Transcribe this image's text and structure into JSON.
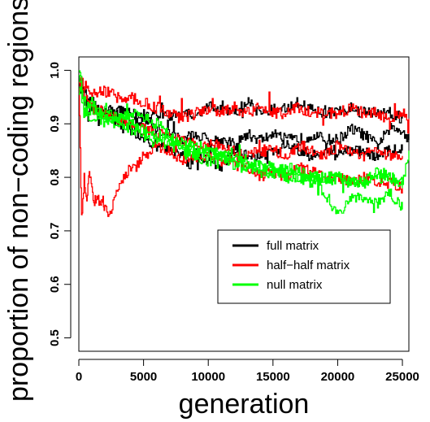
{
  "chart_data": {
    "type": "line",
    "title": "",
    "xlabel": "generation",
    "ylabel": "proportion of non−coding regions",
    "xlim": [
      0,
      25500
    ],
    "ylim": [
      0.475,
      1.025
    ],
    "xticks": [
      0,
      5000,
      10000,
      15000,
      20000,
      25000
    ],
    "xtick_labels": [
      "0",
      "5000",
      "10000",
      "15000",
      "20000",
      "25000"
    ],
    "yticks": [
      0.5,
      0.6,
      0.7,
      0.8,
      0.9,
      1.0
    ],
    "ytick_labels": [
      "0.5",
      "0.6",
      "0.7",
      "0.8",
      "0.9",
      "1.0"
    ],
    "grid": false,
    "legend_position": "center-right",
    "series": [
      {
        "name": "full matrix",
        "color": "#000000",
        "x": [
          0,
          400,
          700,
          1000,
          1500,
          2000,
          3000,
          4000,
          5000,
          6000,
          7000,
          8000,
          9000,
          10000,
          11000,
          12000,
          13000,
          14000,
          15000,
          16000,
          17000,
          18000,
          19000,
          20000,
          21000,
          22000,
          23000,
          24000,
          25000,
          25500
        ],
        "values": [
          0.98,
          0.95,
          0.91,
          0.93,
          0.9,
          0.92,
          0.91,
          0.9,
          0.91,
          0.89,
          0.88,
          0.87,
          0.88,
          0.87,
          0.87,
          0.86,
          0.88,
          0.87,
          0.88,
          0.87,
          0.87,
          0.88,
          0.87,
          0.87,
          0.89,
          0.88,
          0.86,
          0.89,
          0.89,
          0.87
        ]
      },
      {
        "name": "full matrix",
        "color": "#000000",
        "x": [
          0,
          500,
          1000,
          2000,
          3000,
          4000,
          5000,
          6000,
          7000,
          8000,
          8500,
          9000,
          10000,
          11000,
          12000,
          13000,
          14000,
          15000,
          16000,
          17000,
          18000,
          19000,
          20000,
          21000,
          22000,
          23000,
          24000,
          25000
        ],
        "values": [
          0.98,
          0.96,
          0.93,
          0.92,
          0.9,
          0.89,
          0.87,
          0.86,
          0.85,
          0.84,
          0.82,
          0.85,
          0.83,
          0.82,
          0.85,
          0.84,
          0.84,
          0.85,
          0.86,
          0.85,
          0.84,
          0.85,
          0.84,
          0.85,
          0.85,
          0.84,
          0.85,
          0.85
        ]
      },
      {
        "name": "full matrix",
        "color": "#000000",
        "x": [
          0,
          500,
          1000,
          2000,
          3000,
          4000,
          5000,
          6000,
          7000,
          8000,
          9000,
          10000,
          11000,
          12000,
          13000,
          14000,
          15000,
          16000,
          17000,
          18000,
          19000,
          20000,
          21000,
          22000,
          23000,
          24000,
          25000
        ],
        "values": [
          0.97,
          0.95,
          0.93,
          0.92,
          0.93,
          0.92,
          0.91,
          0.92,
          0.91,
          0.92,
          0.92,
          0.93,
          0.93,
          0.92,
          0.94,
          0.92,
          0.93,
          0.93,
          0.94,
          0.93,
          0.92,
          0.92,
          0.93,
          0.92,
          0.92,
          0.92,
          0.91
        ]
      },
      {
        "name": "half−half matrix",
        "color": "#ff0000",
        "x": [
          0,
          200,
          400,
          600,
          800,
          1000,
          1200,
          1400,
          1600,
          1800,
          2000,
          2400,
          2800,
          3200,
          3600,
          4000,
          4500,
          5000,
          6000,
          7000,
          8000,
          9000,
          10000,
          11000,
          12000,
          13000,
          14000,
          15000,
          16000,
          17000,
          18000,
          19000,
          20000,
          21000,
          22000,
          23000,
          24000,
          25000
        ],
        "values": [
          0.97,
          0.72,
          0.8,
          0.76,
          0.82,
          0.78,
          0.75,
          0.77,
          0.75,
          0.76,
          0.74,
          0.73,
          0.76,
          0.79,
          0.8,
          0.82,
          0.82,
          0.84,
          0.86,
          0.85,
          0.83,
          0.84,
          0.84,
          0.83,
          0.83,
          0.82,
          0.8,
          0.81,
          0.8,
          0.82,
          0.81,
          0.8,
          0.8,
          0.79,
          0.8,
          0.79,
          0.79,
          0.78
        ]
      },
      {
        "name": "half−half matrix",
        "color": "#ff0000",
        "x": [
          0,
          500,
          1000,
          2000,
          3000,
          4000,
          5000,
          6000,
          7000,
          8000,
          9000,
          10000,
          11000,
          12000,
          13000,
          14000,
          15000,
          16000,
          17000,
          18000,
          19000,
          20000,
          21000,
          22000,
          23000,
          24000,
          25000,
          25500
        ],
        "values": [
          0.98,
          0.97,
          0.96,
          0.96,
          0.95,
          0.95,
          0.94,
          0.93,
          0.92,
          0.91,
          0.92,
          0.93,
          0.92,
          0.93,
          0.92,
          0.93,
          0.92,
          0.92,
          0.93,
          0.92,
          0.92,
          0.92,
          0.93,
          0.92,
          0.92,
          0.91,
          0.92,
          0.91
        ]
      },
      {
        "name": "half−half matrix",
        "color": "#ff0000",
        "x": [
          0,
          500,
          1000,
          2000,
          3000,
          4000,
          5000,
          6000,
          7000,
          8000,
          9000,
          10000,
          11000,
          12000,
          13000,
          14000,
          15000,
          16000,
          17000,
          18000,
          19000,
          20000,
          21000,
          22000,
          23000,
          24000,
          25000
        ],
        "values": [
          0.98,
          0.95,
          0.93,
          0.92,
          0.91,
          0.9,
          0.89,
          0.88,
          0.88,
          0.87,
          0.86,
          0.86,
          0.86,
          0.85,
          0.84,
          0.85,
          0.85,
          0.84,
          0.86,
          0.85,
          0.84,
          0.86,
          0.85,
          0.84,
          0.85,
          0.84,
          0.84
        ]
      },
      {
        "name": "null matrix",
        "color": "#00ff00",
        "x": [
          0,
          300,
          600,
          1000,
          1500,
          2000,
          3000,
          4000,
          5000,
          6000,
          7000,
          8000,
          9000,
          10000,
          11000,
          12000,
          13000,
          14000,
          15000,
          16000,
          17000,
          18000,
          19000,
          20000,
          21000,
          22000,
          23000,
          24000,
          25000,
          25500
        ],
        "values": [
          1.0,
          0.96,
          0.93,
          0.94,
          0.92,
          0.93,
          0.91,
          0.92,
          0.91,
          0.9,
          0.88,
          0.86,
          0.85,
          0.85,
          0.84,
          0.83,
          0.82,
          0.82,
          0.81,
          0.8,
          0.8,
          0.8,
          0.79,
          0.8,
          0.79,
          0.79,
          0.8,
          0.8,
          0.79,
          0.85
        ]
      },
      {
        "name": "null matrix",
        "color": "#00ff00",
        "x": [
          0,
          300,
          600,
          1000,
          1500,
          2000,
          3000,
          4000,
          5000,
          6000,
          7000,
          8000,
          9000,
          10000,
          11000,
          12000,
          13000,
          14000,
          15000,
          16000,
          17000,
          18000,
          19000,
          20000,
          21000,
          22000,
          23000,
          24000,
          25000
        ],
        "values": [
          0.99,
          0.95,
          0.92,
          0.91,
          0.92,
          0.9,
          0.91,
          0.9,
          0.89,
          0.88,
          0.87,
          0.86,
          0.86,
          0.85,
          0.84,
          0.84,
          0.83,
          0.82,
          0.82,
          0.81,
          0.8,
          0.79,
          0.77,
          0.73,
          0.76,
          0.76,
          0.75,
          0.77,
          0.74
        ]
      },
      {
        "name": "null matrix",
        "color": "#00ff00",
        "x": [
          0,
          300,
          600,
          1000,
          1500,
          2000,
          3000,
          4000,
          5000,
          6000,
          7000,
          8000,
          9000,
          10000,
          11000,
          12000,
          13000,
          14000,
          15000,
          16000,
          17000,
          18000,
          19000,
          20000,
          21000,
          22000,
          23000,
          24000,
          25000
        ],
        "values": [
          0.98,
          0.94,
          0.91,
          0.93,
          0.92,
          0.91,
          0.9,
          0.89,
          0.88,
          0.87,
          0.86,
          0.85,
          0.84,
          0.83,
          0.84,
          0.82,
          0.82,
          0.81,
          0.81,
          0.82,
          0.81,
          0.8,
          0.8,
          0.8,
          0.79,
          0.79,
          0.81,
          0.8,
          0.78
        ]
      }
    ],
    "legend": [
      {
        "label": "full matrix",
        "color": "#000000"
      },
      {
        "label": "half−half matrix",
        "color": "#ff0000"
      },
      {
        "label": "null matrix",
        "color": "#00ff00"
      }
    ]
  }
}
